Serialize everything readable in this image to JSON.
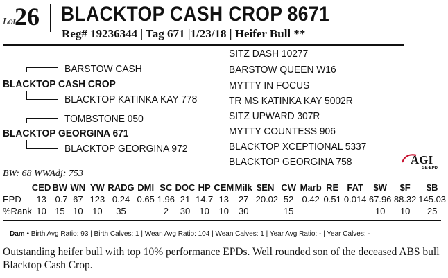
{
  "lot": {
    "prefix": "Lot",
    "number": "26"
  },
  "title": "BLACKTOP CASH CROP 8671",
  "reg_line": "Reg# 19236344 | Tag 671 |1/23/18 | Heifer Bull **",
  "pedigree": {
    "sire": "BLACKTOP CASH CROP",
    "sire_sire": "BARSTOW CASH",
    "sire_dam": "BLACKTOP KATINKA KAY 778",
    "dam": "BLACKTOP GEORGINA 671",
    "dam_sire": "TOMBSTONE 050",
    "dam_dam": "BLACKTOP GEORGINA 972",
    "third_generation": [
      "SITZ DASH 10277",
      "BARSTOW QUEEN W16",
      "MYTTY IN FOCUS",
      "TR MS KATINKA KAY 5002R",
      "SITZ UPWARD 307R",
      "MYTTY COUNTESS 906",
      "BLACKTOP XCEPTIONAL 5337",
      "BLACKTOP GEORGINA 758"
    ]
  },
  "logo": {
    "text": "AGI",
    "sub": "GE-EPD",
    "accent": "#c8102e"
  },
  "bw_line": "BW: 68   WWAdj: 753",
  "epd_table": {
    "headers": [
      "",
      "CED",
      "BW",
      "WN",
      "YW",
      "RADG",
      "DMI",
      "SC",
      "DOC",
      "HP",
      "CEM",
      "Milk",
      "$EN",
      "CW",
      "Marb",
      "RE",
      "FAT",
      "$W",
      "$F",
      "$B"
    ],
    "rows": [
      [
        "EPD",
        "13",
        "-0.7",
        "67",
        "123",
        "0.24",
        "0.65",
        "1.96",
        "21",
        "14.7",
        "13",
        "27",
        "-20.02",
        "52",
        "0.42",
        "0.51",
        "0.014",
        "67.96",
        "88.32",
        "145.03"
      ],
      [
        "%Rank",
        "10",
        "15",
        "10",
        "10",
        "35",
        "",
        "2",
        "30",
        "10",
        "10",
        "30",
        "",
        "15",
        "",
        "",
        "",
        "10",
        "10",
        "25"
      ]
    ]
  },
  "dam_line": {
    "label": "Dam",
    "text": "•  Birth Avg Ratio: 93  | Birth Calves: 1  | Wean Avg Ratio: 104  | Wean Calves: 1  | Year Avg Ratio: -  | Year Calves: -"
  },
  "description": "Outstanding heifer bull with top 10% performance EPDs.  Well rounded son of the deceased ABS bull Blacktop Cash Crop."
}
